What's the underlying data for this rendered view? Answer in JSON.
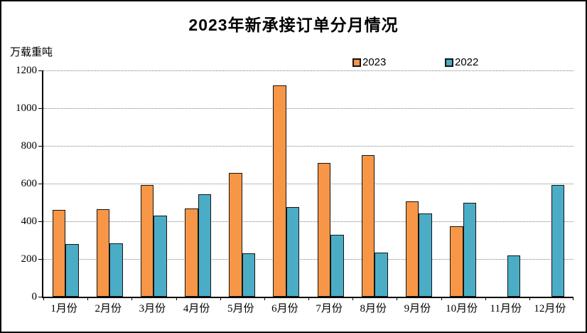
{
  "title": "2023年新承接订单分月情况",
  "y_axis_label": "万载重吨",
  "legend": {
    "items": [
      {
        "label": "2023",
        "color": "#F79646"
      },
      {
        "label": "2022",
        "color": "#4BACC6"
      }
    ]
  },
  "chart_data": {
    "type": "bar",
    "title": "2023年新承接订单分月情况",
    "xlabel": "",
    "ylabel": "万载重吨",
    "categories": [
      "1月份",
      "2月份",
      "3月份",
      "4月份",
      "5月份",
      "6月份",
      "7月份",
      "8月份",
      "9月份",
      "10月份",
      "11月份",
      "12月份"
    ],
    "series": [
      {
        "name": "2023",
        "color": "#F79646",
        "values": [
          460,
          464,
          593,
          467,
          658,
          1122,
          708,
          752,
          505,
          373,
          0,
          0
        ]
      },
      {
        "name": "2022",
        "color": "#4BACC6",
        "values": [
          281,
          283,
          430,
          544,
          230,
          477,
          327,
          233,
          440,
          497,
          220,
          592
        ]
      }
    ],
    "ylim": [
      0,
      1200
    ],
    "yticks": [
      0,
      200,
      400,
      600,
      800,
      1000,
      1200
    ],
    "grid": "horizontal-dotted",
    "legend_position": "top-center-above-plot",
    "bar_outline_color": "#141414",
    "no_2023_bars_for": [
      "11月份",
      "12月份"
    ]
  }
}
